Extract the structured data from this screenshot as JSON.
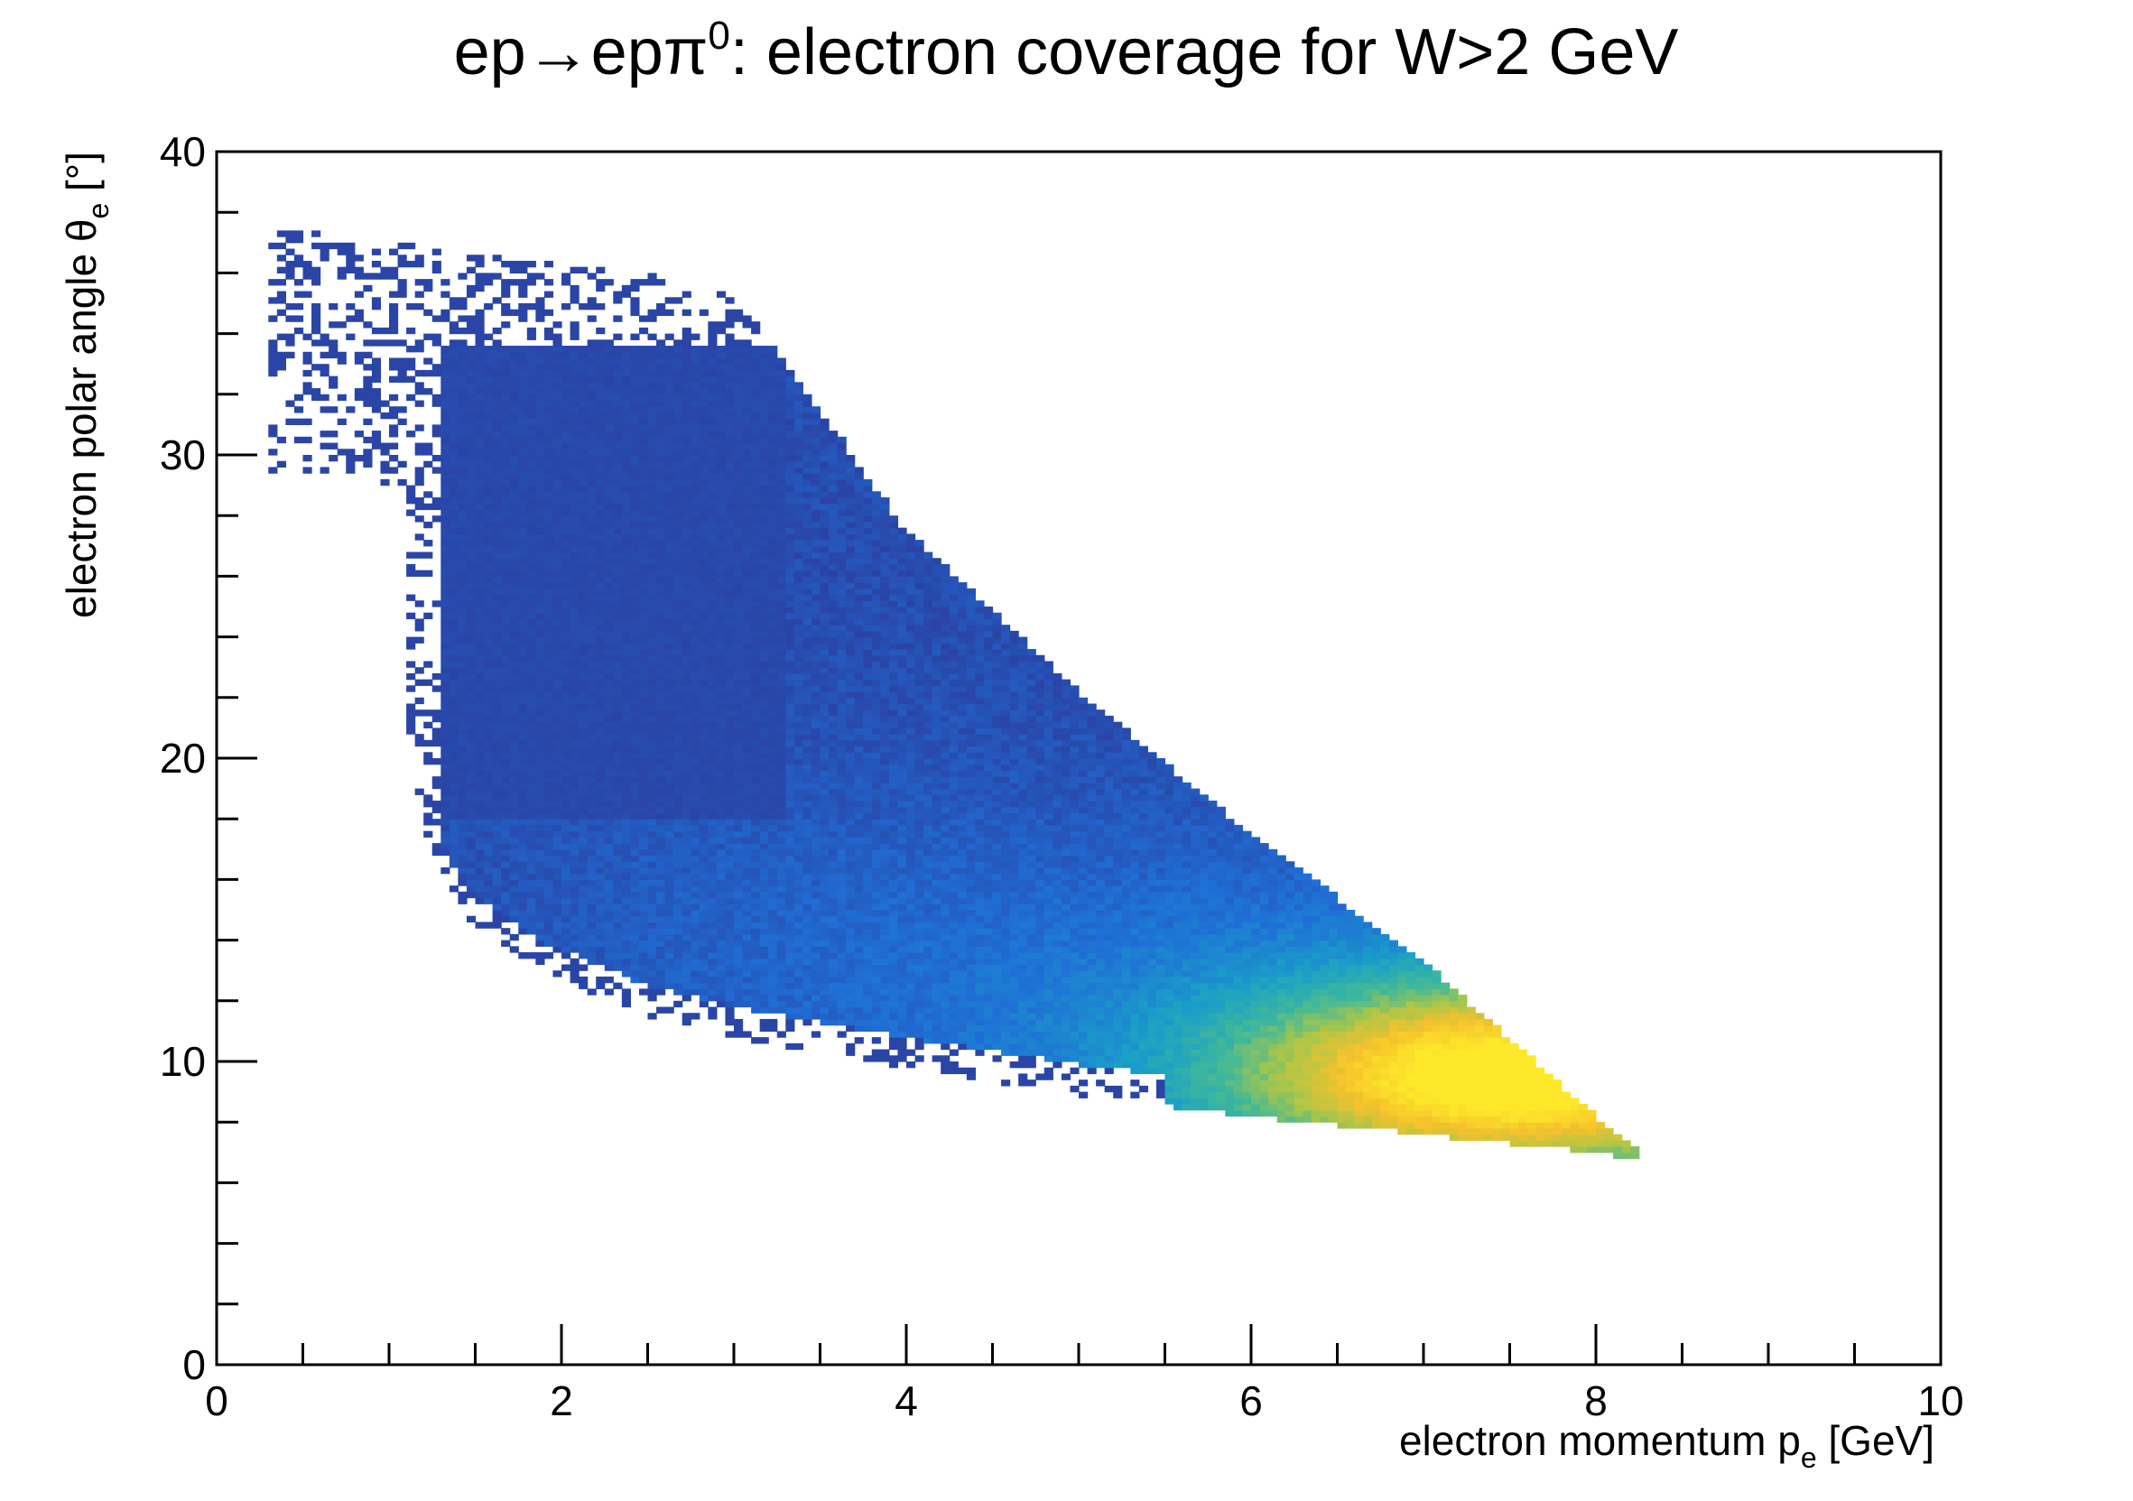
{
  "chart_data": {
    "type": "heatmap",
    "title": {
      "prefix": "ep",
      "arrow": "→",
      "mid": "epπ",
      "sup": "0",
      "suffix": ": electron coverage for W>2 GeV"
    },
    "xlabel": {
      "main": "electron momentum p",
      "sub": "e",
      "unit": " [GeV]"
    },
    "ylabel": {
      "main": "electron polar angle θ",
      "sub": "e",
      "unit": " [°]"
    },
    "xlim": [
      0,
      10
    ],
    "ylim": [
      0,
      40
    ],
    "x_major_ticks": [
      0,
      2,
      4,
      6,
      8,
      10
    ],
    "x_tick_labels": [
      "0",
      "2",
      "4",
      "6",
      "8",
      "10"
    ],
    "y_major_ticks": [
      0,
      10,
      20,
      30,
      40
    ],
    "y_tick_labels": [
      "0",
      "10",
      "20",
      "30",
      "40"
    ],
    "grid": false,
    "legend": "none",
    "colormap": [
      "#2b3fa0",
      "#1f6fd6",
      "#1a9fc8",
      "#3fb89a",
      "#a8c64a",
      "#f6c12c",
      "#fde92a"
    ],
    "bins_x": 200,
    "bins_y": 200,
    "coverage": {
      "upper_boundary": [
        [
          0.3,
          37.5
        ],
        [
          1.0,
          37.0
        ],
        [
          1.5,
          36.6
        ],
        [
          2.0,
          36.4
        ],
        [
          2.5,
          36.0
        ],
        [
          3.0,
          35.3
        ],
        [
          3.5,
          31.5
        ],
        [
          4.0,
          27.5
        ],
        [
          5.0,
          22.2
        ],
        [
          6.0,
          17.5
        ],
        [
          7.0,
          13.3
        ],
        [
          8.0,
          8.2
        ],
        [
          8.2,
          7.2
        ]
      ],
      "lower_boundary": [
        [
          1.1,
          22.0
        ],
        [
          1.2,
          17.5
        ],
        [
          1.4,
          15.0
        ],
        [
          1.8,
          13.2
        ],
        [
          2.5,
          11.5
        ],
        [
          3.0,
          10.8
        ],
        [
          4.0,
          9.8
        ],
        [
          5.0,
          8.9
        ],
        [
          6.0,
          8.2
        ],
        [
          7.0,
          7.6
        ],
        [
          8.0,
          7.0
        ],
        [
          8.2,
          6.8
        ]
      ],
      "dense_core": {
        "x_range": [
          1.4,
          3.3
        ],
        "y_range": [
          15,
          35.5
        ]
      },
      "peak": {
        "x": 7.5,
        "y": 9.5
      }
    }
  }
}
